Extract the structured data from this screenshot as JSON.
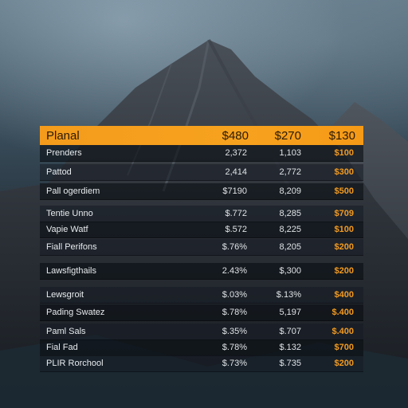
{
  "table": {
    "header": {
      "label": "Planal",
      "c1": "$480",
      "c2": "$270",
      "c3": "$130"
    },
    "rows": [
      {
        "label": "Prenders",
        "c1": "2,372",
        "c2": "1,103",
        "c3": "$100"
      },
      {
        "label": "Pattod",
        "c1": "2,414",
        "c2": "2,772",
        "c3": "$300"
      },
      {
        "label": "Pall ogerdiem",
        "c1": "$7190",
        "c2": "8,209",
        "c3": "$500"
      },
      {
        "label": "Tentie Unno",
        "c1": "$.772",
        "c2": "8,285",
        "c3": "$709"
      },
      {
        "label": "Vapie Watf",
        "c1": "$.572",
        "c2": "8,225",
        "c3": "$100"
      },
      {
        "label": "Fiall Perifons",
        "c1": "$.76%",
        "c2": "8,205",
        "c3": "$200"
      },
      {
        "label": "Lawsfigthails",
        "c1": "2.43%",
        "c2": "$,300",
        "c3": "$200"
      },
      {
        "label": "Lewsgroit",
        "c1": "$.03%",
        "c2": "$.13%",
        "c3": "$400"
      },
      {
        "label": "Pading Swatez",
        "c1": "$.78%",
        "c2": "5,197",
        "c3": "$.400"
      },
      {
        "label": "Paml Sals",
        "c1": "$.35%",
        "c2": "$.707",
        "c3": "$.400"
      },
      {
        "label": "Fial Fad",
        "c1": "$.78%",
        "c2": "$.132",
        "c3": "$700"
      },
      {
        "label": "PLIR Rorchool",
        "c1": "$.73%",
        "c2": "$.735",
        "c3": "$200"
      }
    ]
  },
  "colors": {
    "header_accent": "#f7a21f",
    "value_accent": "#f29a20"
  }
}
